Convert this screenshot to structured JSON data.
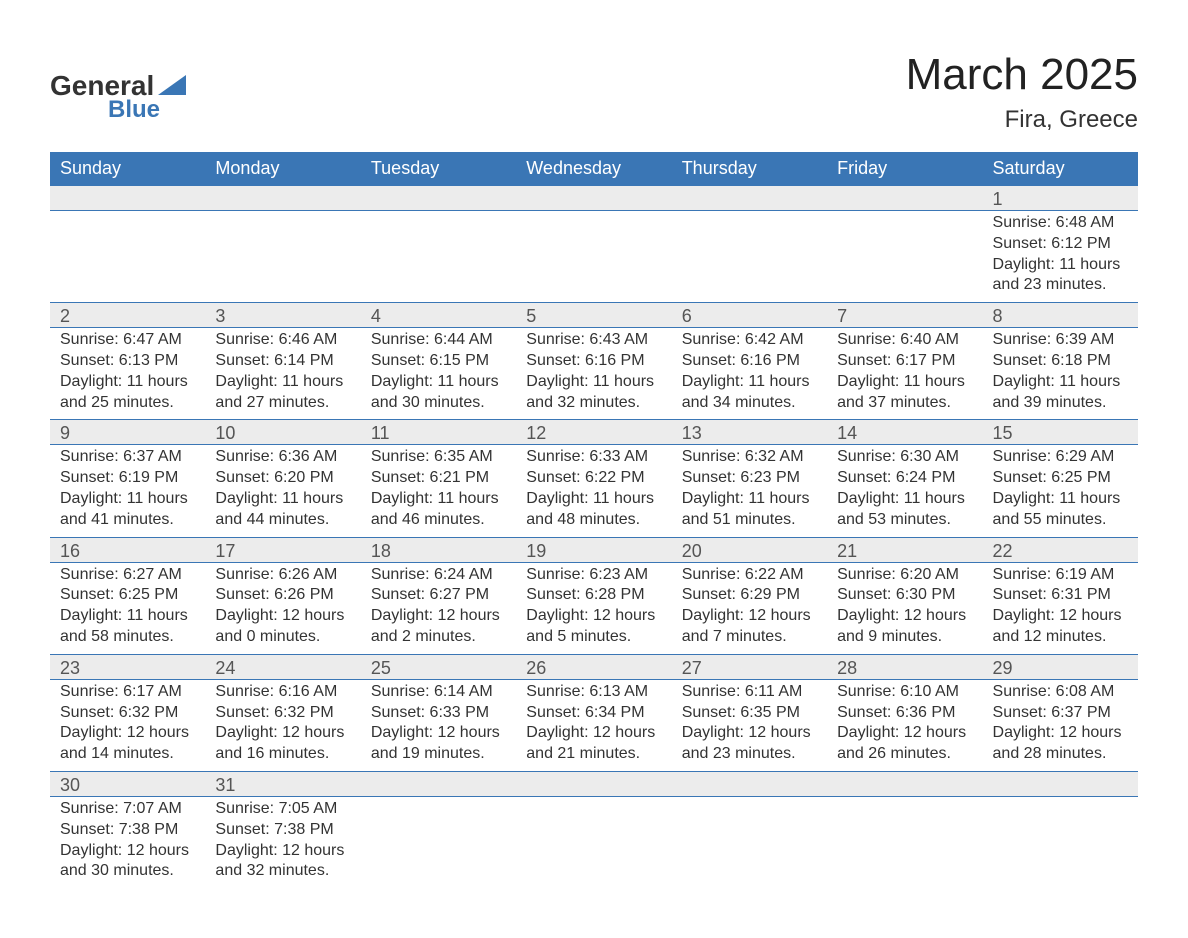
{
  "logo": {
    "text1": "General",
    "text2": "Blue",
    "triangle_color": "#3a76b5"
  },
  "title": "March 2025",
  "location": "Fira, Greece",
  "colors": {
    "header_bg": "#3a76b5",
    "header_text": "#ffffff",
    "daynum_bg": "#ececec",
    "row_border": "#3a76b5",
    "body_bg": "#ffffff",
    "text": "#333333"
  },
  "weekdays": [
    "Sunday",
    "Monday",
    "Tuesday",
    "Wednesday",
    "Thursday",
    "Friday",
    "Saturday"
  ],
  "weeks": [
    [
      null,
      null,
      null,
      null,
      null,
      null,
      {
        "n": "1",
        "sunrise": "6:48 AM",
        "sunset": "6:12 PM",
        "daylight": "11 hours and 23 minutes."
      }
    ],
    [
      {
        "n": "2",
        "sunrise": "6:47 AM",
        "sunset": "6:13 PM",
        "daylight": "11 hours and 25 minutes."
      },
      {
        "n": "3",
        "sunrise": "6:46 AM",
        "sunset": "6:14 PM",
        "daylight": "11 hours and 27 minutes."
      },
      {
        "n": "4",
        "sunrise": "6:44 AM",
        "sunset": "6:15 PM",
        "daylight": "11 hours and 30 minutes."
      },
      {
        "n": "5",
        "sunrise": "6:43 AM",
        "sunset": "6:16 PM",
        "daylight": "11 hours and 32 minutes."
      },
      {
        "n": "6",
        "sunrise": "6:42 AM",
        "sunset": "6:16 PM",
        "daylight": "11 hours and 34 minutes."
      },
      {
        "n": "7",
        "sunrise": "6:40 AM",
        "sunset": "6:17 PM",
        "daylight": "11 hours and 37 minutes."
      },
      {
        "n": "8",
        "sunrise": "6:39 AM",
        "sunset": "6:18 PM",
        "daylight": "11 hours and 39 minutes."
      }
    ],
    [
      {
        "n": "9",
        "sunrise": "6:37 AM",
        "sunset": "6:19 PM",
        "daylight": "11 hours and 41 minutes."
      },
      {
        "n": "10",
        "sunrise": "6:36 AM",
        "sunset": "6:20 PM",
        "daylight": "11 hours and 44 minutes."
      },
      {
        "n": "11",
        "sunrise": "6:35 AM",
        "sunset": "6:21 PM",
        "daylight": "11 hours and 46 minutes."
      },
      {
        "n": "12",
        "sunrise": "6:33 AM",
        "sunset": "6:22 PM",
        "daylight": "11 hours and 48 minutes."
      },
      {
        "n": "13",
        "sunrise": "6:32 AM",
        "sunset": "6:23 PM",
        "daylight": "11 hours and 51 minutes."
      },
      {
        "n": "14",
        "sunrise": "6:30 AM",
        "sunset": "6:24 PM",
        "daylight": "11 hours and 53 minutes."
      },
      {
        "n": "15",
        "sunrise": "6:29 AM",
        "sunset": "6:25 PM",
        "daylight": "11 hours and 55 minutes."
      }
    ],
    [
      {
        "n": "16",
        "sunrise": "6:27 AM",
        "sunset": "6:25 PM",
        "daylight": "11 hours and 58 minutes."
      },
      {
        "n": "17",
        "sunrise": "6:26 AM",
        "sunset": "6:26 PM",
        "daylight": "12 hours and 0 minutes."
      },
      {
        "n": "18",
        "sunrise": "6:24 AM",
        "sunset": "6:27 PM",
        "daylight": "12 hours and 2 minutes."
      },
      {
        "n": "19",
        "sunrise": "6:23 AM",
        "sunset": "6:28 PM",
        "daylight": "12 hours and 5 minutes."
      },
      {
        "n": "20",
        "sunrise": "6:22 AM",
        "sunset": "6:29 PM",
        "daylight": "12 hours and 7 minutes."
      },
      {
        "n": "21",
        "sunrise": "6:20 AM",
        "sunset": "6:30 PM",
        "daylight": "12 hours and 9 minutes."
      },
      {
        "n": "22",
        "sunrise": "6:19 AM",
        "sunset": "6:31 PM",
        "daylight": "12 hours and 12 minutes."
      }
    ],
    [
      {
        "n": "23",
        "sunrise": "6:17 AM",
        "sunset": "6:32 PM",
        "daylight": "12 hours and 14 minutes."
      },
      {
        "n": "24",
        "sunrise": "6:16 AM",
        "sunset": "6:32 PM",
        "daylight": "12 hours and 16 minutes."
      },
      {
        "n": "25",
        "sunrise": "6:14 AM",
        "sunset": "6:33 PM",
        "daylight": "12 hours and 19 minutes."
      },
      {
        "n": "26",
        "sunrise": "6:13 AM",
        "sunset": "6:34 PM",
        "daylight": "12 hours and 21 minutes."
      },
      {
        "n": "27",
        "sunrise": "6:11 AM",
        "sunset": "6:35 PM",
        "daylight": "12 hours and 23 minutes."
      },
      {
        "n": "28",
        "sunrise": "6:10 AM",
        "sunset": "6:36 PM",
        "daylight": "12 hours and 26 minutes."
      },
      {
        "n": "29",
        "sunrise": "6:08 AM",
        "sunset": "6:37 PM",
        "daylight": "12 hours and 28 minutes."
      }
    ],
    [
      {
        "n": "30",
        "sunrise": "7:07 AM",
        "sunset": "7:38 PM",
        "daylight": "12 hours and 30 minutes."
      },
      {
        "n": "31",
        "sunrise": "7:05 AM",
        "sunset": "7:38 PM",
        "daylight": "12 hours and 32 minutes."
      },
      null,
      null,
      null,
      null,
      null
    ]
  ],
  "labels": {
    "sunrise_prefix": "Sunrise: ",
    "sunset_prefix": "Sunset: ",
    "daylight_prefix": "Daylight: "
  }
}
